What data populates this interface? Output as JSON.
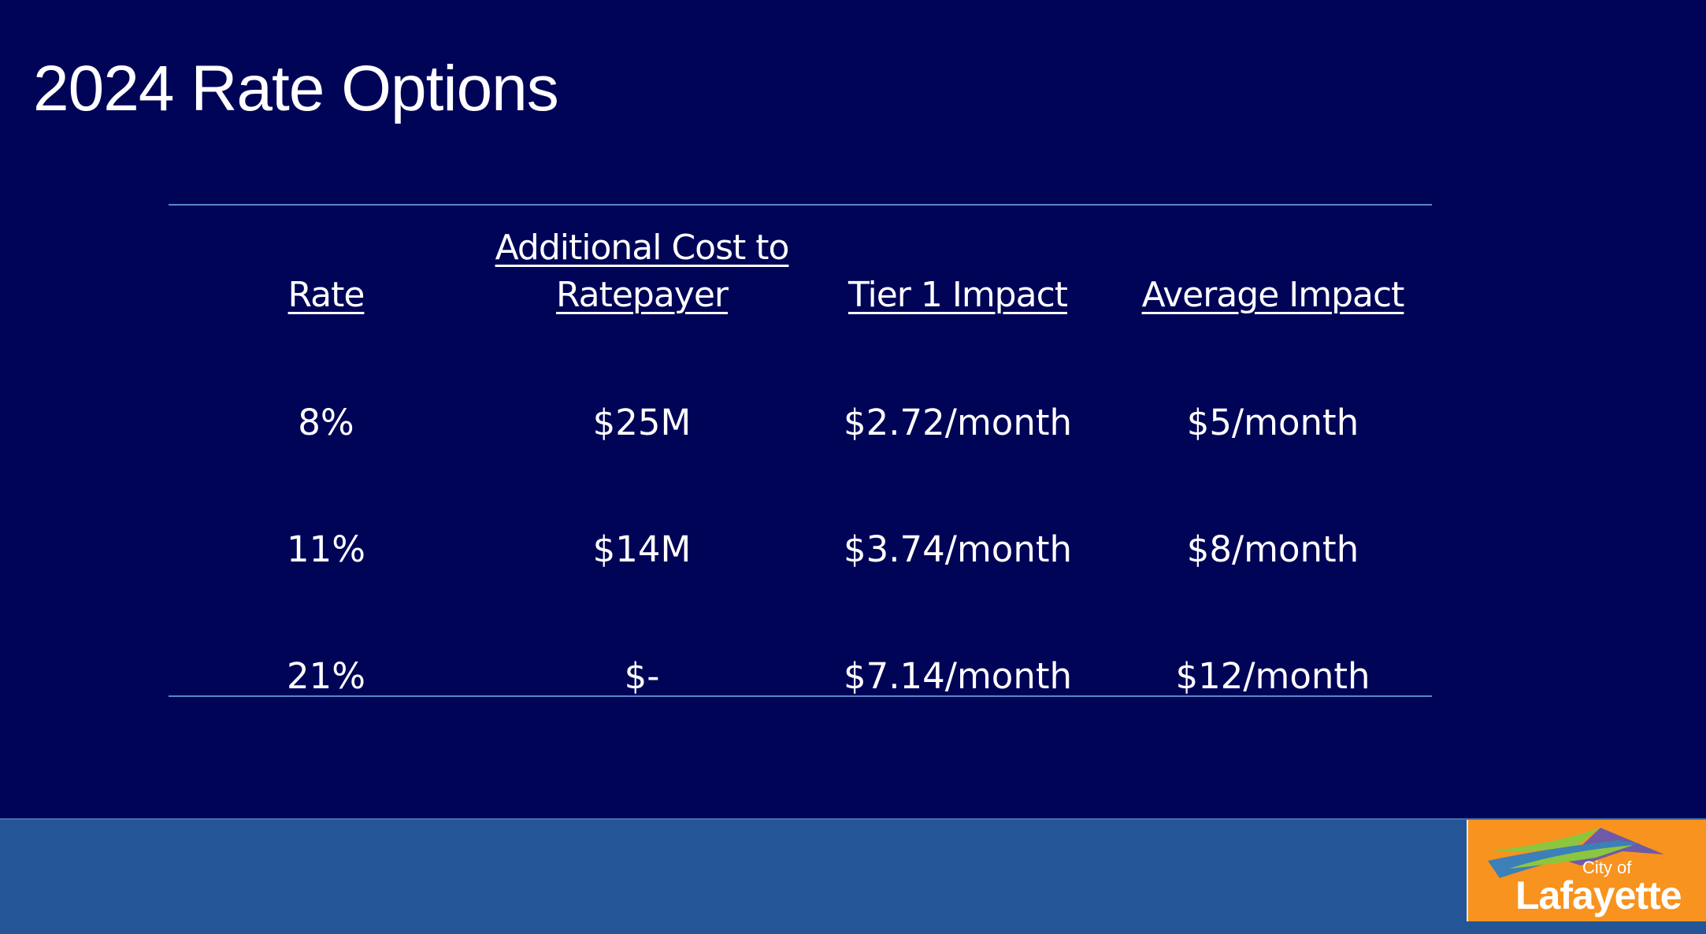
{
  "slide": {
    "title": "2024 Rate Options"
  },
  "table": {
    "headers": [
      {
        "lines": [
          "Rate"
        ]
      },
      {
        "lines": [
          "Additional Cost to",
          "Ratepayer"
        ]
      },
      {
        "lines": [
          "Tier 1 Impact"
        ]
      },
      {
        "lines": [
          "Average Impact"
        ]
      }
    ],
    "rows": [
      [
        "8%",
        "$25M",
        "$2.72/month",
        "$5/month"
      ],
      [
        "11%",
        "$14M",
        "$3.74/month",
        "$8/month"
      ],
      [
        "21%",
        "$-",
        "$7.14/month",
        "$12/month"
      ]
    ]
  },
  "logo": {
    "line1": "City of",
    "line2": "Lafayette"
  },
  "colors": {
    "background": "#000457",
    "footer": "#235597",
    "logo_background": "#f7931e",
    "rule": "#5a86c9"
  }
}
